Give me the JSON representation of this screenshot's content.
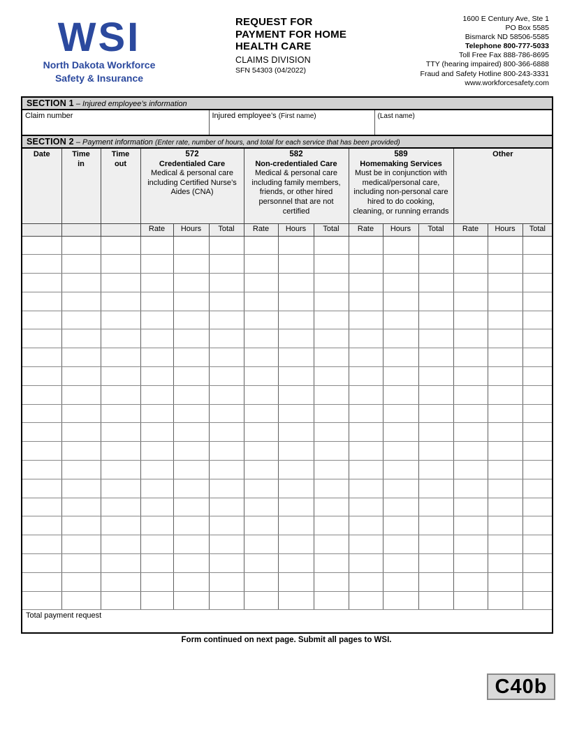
{
  "colors": {
    "brand_blue": "#2B499E",
    "bar_gray": "#D2D2D2",
    "head_gray": "#EFEFEF",
    "subhead_gray": "#EDEDED",
    "badge_gray": "#D9D9D9"
  },
  "logo": {
    "acronym": "WSI",
    "tagline": [
      "North Dakota Workforce",
      "Safety & Insurance"
    ]
  },
  "header": {
    "title_lines": [
      "REQUEST FOR",
      "PAYMENT FOR HOME",
      "HEALTH CARE"
    ],
    "division": "CLAIMS DIVISION",
    "form_number": "SFN 54303 (04/2022)",
    "contact": {
      "lines": [
        {
          "text": "1600 E Century Ave, Ste 1",
          "bold": false
        },
        {
          "text": "PO Box 5585",
          "bold": false
        },
        {
          "text": "Bismarck ND 58506-5585",
          "bold": false
        },
        {
          "text": "Telephone 800-777-5033",
          "bold": true
        },
        {
          "text": "Toll Free Fax 888-786-8695",
          "bold": false
        },
        {
          "text": "TTY (hearing impaired) 800-366-6888",
          "bold": false
        },
        {
          "text": "Fraud and Safety Hotline 800-243-3331",
          "bold": false
        },
        {
          "text": "www.workforcesafety.com",
          "bold": false
        }
      ]
    }
  },
  "section1": {
    "title": "SECTION 1",
    "subtitle": "– Injured employee’s information",
    "fields": [
      {
        "label": "Claim number",
        "suffix": "",
        "value": ""
      },
      {
        "label": "Injured employee’s",
        "suffix": "(First name)",
        "value": ""
      },
      {
        "label": "",
        "suffix": "(Last name)",
        "value": ""
      }
    ]
  },
  "section2": {
    "title": "SECTION 2",
    "subtitle": "– Payment information",
    "note": "(Enter rate, number of hours, and total for each service that has been provided)",
    "time_columns": [
      "Date",
      "Time\nin",
      "Time\nout"
    ],
    "services": [
      {
        "code": "572",
        "name": "Credentialed Care",
        "description": "Medical & personal care including Certified Nurse’s Aides (CNA)"
      },
      {
        "code": "582",
        "name": "Non-credentialed Care",
        "description": "Medical & personal care including family members, friends, or other hired personnel that are not certified"
      },
      {
        "code": "589",
        "name": "Homemaking Services",
        "description": "Must be in conjunction with medical/personal care, including non-personal care hired to do cooking, cleaning, or running errands"
      },
      {
        "code": "",
        "name": "Other",
        "description": ""
      }
    ],
    "sub_headers": [
      "Rate",
      "Hours",
      "Total"
    ],
    "body_row_count": 20,
    "total_label": "Total payment request",
    "total_value": ""
  },
  "footer": {
    "note": "Form continued on next page.  Submit all pages to WSI.",
    "page_code": "C40b"
  }
}
